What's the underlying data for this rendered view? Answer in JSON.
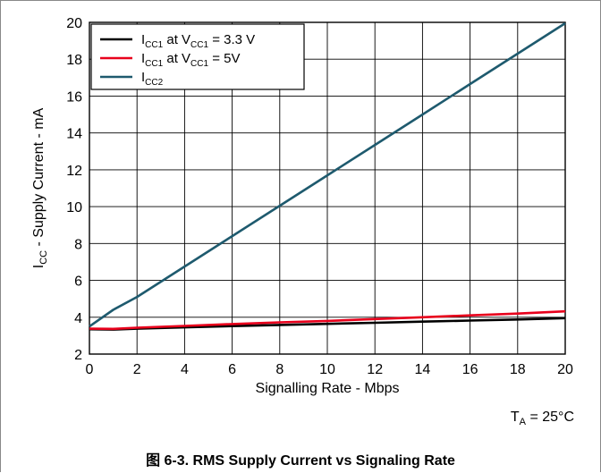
{
  "chart_data": {
    "type": "line",
    "xlabel": "Signalling Rate - Mbps",
    "ylabel": {
      "main": "I",
      "sub": "CC",
      "rest": " - Supply Current - mA"
    },
    "xlim": [
      0,
      20
    ],
    "ylim": [
      2,
      20
    ],
    "xticks": [
      0,
      2,
      4,
      6,
      8,
      10,
      12,
      14,
      16,
      18,
      20
    ],
    "yticks": [
      2,
      4,
      6,
      8,
      10,
      12,
      14,
      16,
      18,
      20
    ],
    "grid": true,
    "legend_position": "top-left",
    "series": [
      {
        "name": "ICC1 at VCC1 = 3.3 V",
        "legend": [
          {
            "t": "I"
          },
          {
            "t": "CC1",
            "sub": true
          },
          {
            "t": " at V"
          },
          {
            "t": "CC1",
            "sub": true
          },
          {
            "t": " = 3.3 V"
          }
        ],
        "color": "#000000",
        "x": [
          0,
          1,
          2,
          4,
          6,
          8,
          10,
          12,
          14,
          16,
          18,
          20
        ],
        "y": [
          3.35,
          3.33,
          3.38,
          3.45,
          3.52,
          3.58,
          3.64,
          3.7,
          3.76,
          3.82,
          3.88,
          3.95
        ]
      },
      {
        "name": "ICC1 at VCC1 = 5V",
        "legend": [
          {
            "t": "I"
          },
          {
            "t": "CC1",
            "sub": true
          },
          {
            "t": " at V"
          },
          {
            "t": "CC1",
            "sub": true
          },
          {
            "t": " = 5V"
          }
        ],
        "color": "#e8001c",
        "x": [
          0,
          1,
          2,
          4,
          6,
          8,
          10,
          12,
          14,
          16,
          18,
          20
        ],
        "y": [
          3.38,
          3.37,
          3.43,
          3.53,
          3.63,
          3.72,
          3.8,
          3.9,
          4.0,
          4.1,
          4.2,
          4.32
        ]
      },
      {
        "name": "ICC2",
        "legend": [
          {
            "t": "I"
          },
          {
            "t": "CC2",
            "sub": true
          }
        ],
        "color": "#1e5a6e",
        "x": [
          0,
          1,
          2,
          4,
          6,
          8,
          10,
          12,
          14,
          16,
          18,
          20
        ],
        "y": [
          3.5,
          4.4,
          5.1,
          6.75,
          8.4,
          10.05,
          11.7,
          13.35,
          15.0,
          16.65,
          18.3,
          19.95
        ]
      }
    ]
  },
  "condition": {
    "main": "T",
    "sub": "A",
    "rest": " = 25°C"
  },
  "caption": "图 6-3. RMS Supply Current vs Signaling Rate"
}
